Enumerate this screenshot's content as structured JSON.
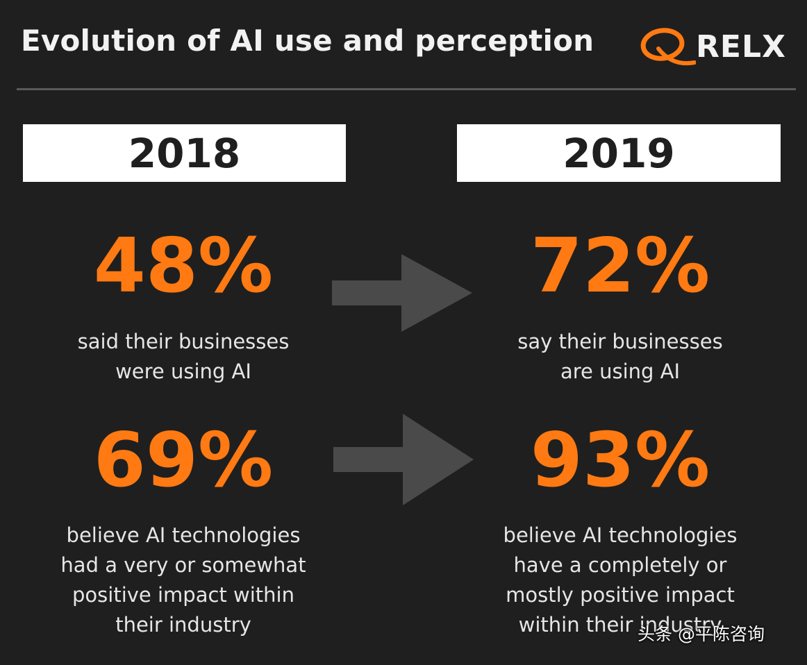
{
  "title": "Evolution of AI use and perception",
  "logo": {
    "text": "RELX",
    "accent_color": "#ff7a12"
  },
  "colors": {
    "background": "#1f1f1f",
    "highlight": "#ff7a12",
    "arrow": "#4a4a4a"
  },
  "years": {
    "left": "2018",
    "right": "2019"
  },
  "rows": [
    {
      "left_stat": "48%",
      "left_text": "said their businesses\nwere using AI",
      "right_stat": "72%",
      "right_text": "say their businesses\nare using AI"
    },
    {
      "left_stat": "69%",
      "left_text": "believe AI technologies\nhad a very or somewhat\npositive impact within\ntheir industry",
      "right_stat": "93%",
      "right_text": "believe AI technologies\nhave a completely or\nmostly positive impact\nwithin their industry"
    }
  ],
  "watermark": "头条 @平陈咨询"
}
